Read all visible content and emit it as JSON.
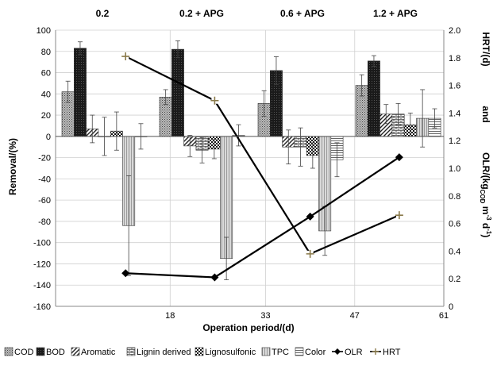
{
  "chart_data": {
    "type": "bar",
    "phases": [
      "0.2",
      "0.2 + APG",
      "0.6 + APG",
      "1.2 + APG"
    ],
    "xlabel": "Operation period/(d)",
    "x_ticks": [
      "18",
      "33",
      "47",
      "61"
    ],
    "ylabel_left": "Removal/(%)",
    "ylim_left": [
      -160,
      100
    ],
    "yticks_left": [
      "100",
      "80",
      "60",
      "40",
      "20",
      "0",
      "-20",
      "-40",
      "-60",
      "-80",
      "-100",
      "-120",
      "-140",
      "-160"
    ],
    "ylabel_right_top": "HRT/(d)",
    "ylabel_right_mid": "and",
    "ylabel_right_bottom": "OLR/(kg",
    "ylabel_right_sub": "COD",
    "ylabel_right_tail": " m",
    "ylabel_right_sup1": "-3",
    "ylabel_right_mid2": " d",
    "ylabel_right_sup2": "-1",
    "ylabel_right_end": ")",
    "ylim_right": [
      0,
      2.0
    ],
    "yticks_right": [
      "2.0",
      "1.8",
      "1.6",
      "1.4",
      "1.2",
      "1.0",
      "0.8",
      "0.6",
      "0.4",
      "0.2",
      "0"
    ],
    "bar_series": [
      {
        "name": "COD",
        "pattern": "dots",
        "values": [
          42,
          37,
          31,
          48
        ],
        "errors": [
          10,
          7,
          12,
          10
        ]
      },
      {
        "name": "BOD",
        "pattern": "dark",
        "values": [
          83,
          82,
          62,
          71
        ],
        "errors": [
          6,
          8,
          13,
          5
        ]
      },
      {
        "name": "Aromatic",
        "pattern": "diag",
        "values": [
          7,
          -9,
          -10,
          21
        ],
        "errors": [
          13,
          10,
          16,
          9
        ]
      },
      {
        "name": "Lignin derived",
        "pattern": "brick",
        "values": [
          0,
          -13,
          -10,
          21
        ],
        "errors": [
          18,
          12,
          18,
          10
        ]
      },
      {
        "name": "Lignosulfonic",
        "pattern": "check",
        "values": [
          5,
          -12,
          -18,
          11
        ],
        "errors": [
          18,
          9,
          12,
          11
        ]
      },
      {
        "name": "TPC",
        "pattern": "vstripe",
        "values": [
          -84,
          -115,
          -89,
          17
        ],
        "errors": [
          47,
          20,
          23,
          27
        ]
      },
      {
        "name": "Color",
        "pattern": "hstripe",
        "values": [
          0,
          1,
          -22,
          17
        ],
        "errors": [
          12,
          10,
          16,
          9
        ]
      }
    ],
    "line_series": [
      {
        "name": "OLR",
        "marker": "diamond",
        "points": [
          [
            11,
            0.24
          ],
          [
            25,
            0.21
          ],
          [
            40,
            0.65
          ],
          [
            54,
            1.08
          ]
        ]
      },
      {
        "name": "HRT",
        "marker": "plus",
        "points": [
          [
            11,
            1.81
          ],
          [
            25,
            1.49
          ],
          [
            40,
            0.38
          ],
          [
            54,
            0.66
          ]
        ]
      }
    ],
    "legend_position": "bottom",
    "grid": true
  }
}
